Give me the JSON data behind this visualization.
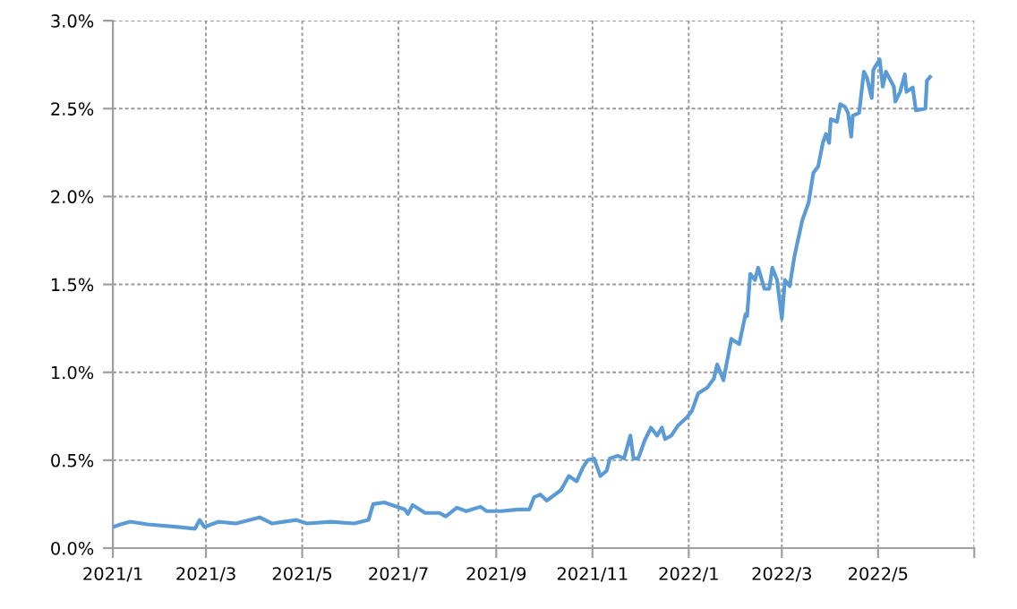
{
  "chart_data": {
    "type": "line",
    "x": [
      "2021-01-01",
      "2021-01-06",
      "2021-01-12",
      "2021-01-23",
      "2021-02-11",
      "2021-02-22",
      "2021-02-25",
      "2021-02-28",
      "2021-03-09",
      "2021-03-20",
      "2021-04-04",
      "2021-04-12",
      "2021-04-27",
      "2021-05-04",
      "2021-05-19",
      "2021-06-03",
      "2021-06-12",
      "2021-06-15",
      "2021-06-22",
      "2021-06-27",
      "2021-07-05",
      "2021-07-07",
      "2021-07-10",
      "2021-07-18",
      "2021-07-27",
      "2021-07-31",
      "2021-08-07",
      "2021-08-13",
      "2021-08-22",
      "2021-08-26",
      "2021-09-04",
      "2021-09-15",
      "2021-09-22",
      "2021-09-25",
      "2021-09-29",
      "2021-10-03",
      "2021-10-12",
      "2021-10-17",
      "2021-10-22",
      "2021-10-26",
      "2021-10-29",
      "2021-11-02",
      "2021-11-06",
      "2021-11-10",
      "2021-11-12",
      "2021-11-17",
      "2021-11-21",
      "2021-11-25",
      "2021-11-27",
      "2021-11-30",
      "2021-12-04",
      "2021-12-08",
      "2021-12-12",
      "2021-12-15",
      "2021-12-17",
      "2021-12-21",
      "2021-12-25",
      "2021-12-31",
      "2022-01-03",
      "2022-01-07",
      "2022-01-13",
      "2022-01-17",
      "2022-01-19",
      "2022-01-23",
      "2022-01-28",
      "2022-02-02",
      "2022-02-06",
      "2022-02-07",
      "2022-02-09",
      "2022-02-12",
      "2022-02-14",
      "2022-02-18",
      "2022-02-21",
      "2022-02-23",
      "2022-02-26",
      "2022-03-01",
      "2022-03-03",
      "2022-03-06",
      "2022-03-09",
      "2022-03-14",
      "2022-03-18",
      "2022-03-21",
      "2022-03-24",
      "2022-03-27",
      "2022-03-29",
      "2022-03-31",
      "2022-04-01",
      "2022-04-05",
      "2022-04-07",
      "2022-04-10",
      "2022-04-12",
      "2022-04-14",
      "2022-04-15",
      "2022-04-19",
      "2022-04-22",
      "2022-04-24",
      "2022-04-27",
      "2022-04-28",
      "2022-05-02",
      "2022-05-04",
      "2022-05-06",
      "2022-05-11",
      "2022-05-12",
      "2022-05-15",
      "2022-05-18",
      "2022-05-19",
      "2022-05-23",
      "2022-05-25",
      "2022-05-31",
      "2022-06-01",
      "2022-06-03"
    ],
    "series": [
      {
        "color": "#5b9bd5",
        "values": [
          0.12,
          0.135,
          0.15,
          0.135,
          0.12,
          0.11,
          0.16,
          0.12,
          0.15,
          0.14,
          0.175,
          0.14,
          0.16,
          0.14,
          0.15,
          0.14,
          0.16,
          0.25,
          0.26,
          0.245,
          0.22,
          0.195,
          0.245,
          0.2,
          0.2,
          0.18,
          0.23,
          0.21,
          0.235,
          0.21,
          0.21,
          0.22,
          0.22,
          0.29,
          0.305,
          0.27,
          0.33,
          0.41,
          0.38,
          0.46,
          0.5,
          0.51,
          0.41,
          0.44,
          0.51,
          0.525,
          0.51,
          0.64,
          0.51,
          0.51,
          0.61,
          0.685,
          0.64,
          0.685,
          0.62,
          0.64,
          0.695,
          0.745,
          0.78,
          0.88,
          0.915,
          0.965,
          1.045,
          0.955,
          1.19,
          1.16,
          1.33,
          1.32,
          1.56,
          1.525,
          1.595,
          1.475,
          1.475,
          1.595,
          1.525,
          1.305,
          1.525,
          1.49,
          1.66,
          1.865,
          1.965,
          2.135,
          2.17,
          2.305,
          2.355,
          2.305,
          2.44,
          2.425,
          2.525,
          2.51,
          2.475,
          2.34,
          2.46,
          2.475,
          2.71,
          2.675,
          2.56,
          2.72,
          2.78,
          2.625,
          2.71,
          2.625,
          2.54,
          2.595,
          2.695,
          2.595,
          2.62,
          2.49,
          2.5,
          2.66,
          2.68
        ]
      }
    ],
    "xlim": [
      "2021-01-01",
      "2022-07-01"
    ],
    "xticks": [
      {
        "value": "2021-01-01",
        "label": "2021/1"
      },
      {
        "value": "2021-03-01",
        "label": "2021/3"
      },
      {
        "value": "2021-05-01",
        "label": "2021/5"
      },
      {
        "value": "2021-07-01",
        "label": "2021/7"
      },
      {
        "value": "2021-09-01",
        "label": "2021/9"
      },
      {
        "value": "2021-11-01",
        "label": "2021/11"
      },
      {
        "value": "2022-01-01",
        "label": "2022/1"
      },
      {
        "value": "2022-03-01",
        "label": "2022/3"
      },
      {
        "value": "2022-05-01",
        "label": "2022/5"
      },
      {
        "value": "2022-07-01",
        "label": null
      }
    ],
    "ylim": [
      0,
      3.0
    ],
    "yticks": [
      {
        "value": 0,
        "label": "0.0%"
      },
      {
        "value": 0.5,
        "label": "0.5%"
      },
      {
        "value": 1.0,
        "label": "1.0%"
      },
      {
        "value": 1.5,
        "label": "1.5%"
      },
      {
        "value": 2.0,
        "label": "2.0%"
      },
      {
        "value": 2.5,
        "label": "2.5%"
      },
      {
        "value": 3.0,
        "label": "3.0%"
      }
    ],
    "grid": true,
    "line_style": "solid",
    "marker": "none"
  }
}
